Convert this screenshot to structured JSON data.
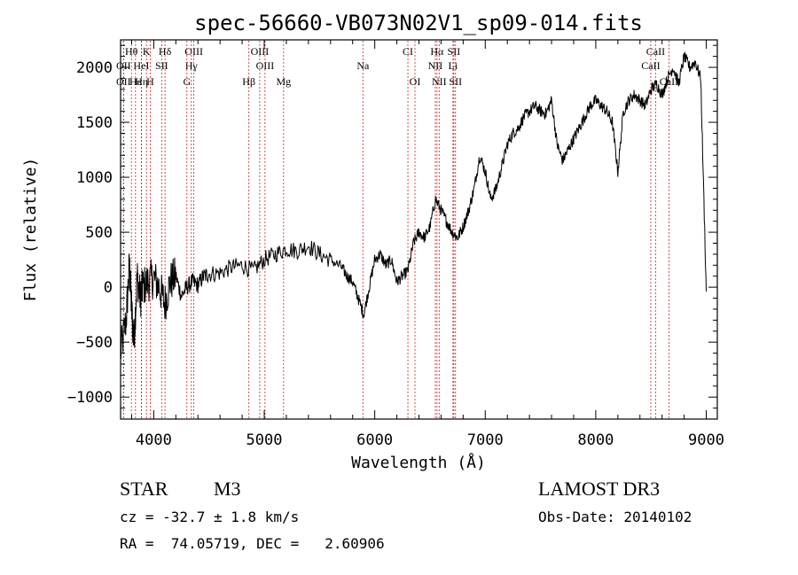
{
  "chart_data": {
    "type": "line",
    "title": "spec-56660-VB073N02V1_sp09-014.fits",
    "xlabel": "Wavelength (Å)",
    "ylabel": "Flux (relative)",
    "xlim": [
      3700,
      9100
    ],
    "ylim": [
      -1200,
      2250
    ],
    "xticks": [
      4000,
      5000,
      6000,
      7000,
      8000,
      9000
    ],
    "yticks": [
      -1000,
      -500,
      0,
      500,
      1000,
      1500,
      2000
    ],
    "series": [
      {
        "name": "flux",
        "x": [
          3700,
          3750,
          3780,
          3800,
          3820,
          3850,
          3880,
          3900,
          3950,
          4000,
          4050,
          4100,
          4150,
          4200,
          4250,
          4300,
          4350,
          4400,
          4450,
          4500,
          4600,
          4700,
          4800,
          4900,
          5000,
          5100,
          5200,
          5300,
          5400,
          5500,
          5600,
          5700,
          5750,
          5800,
          5850,
          5900,
          5950,
          6000,
          6050,
          6100,
          6150,
          6200,
          6250,
          6300,
          6350,
          6400,
          6450,
          6500,
          6550,
          6600,
          6650,
          6700,
          6750,
          6800,
          6850,
          6900,
          6950,
          7000,
          7050,
          7100,
          7150,
          7200,
          7250,
          7300,
          7350,
          7400,
          7450,
          7500,
          7550,
          7600,
          7650,
          7700,
          7750,
          7800,
          7850,
          7900,
          7950,
          8000,
          8050,
          8100,
          8150,
          8200,
          8250,
          8300,
          8350,
          8400,
          8450,
          8500,
          8550,
          8600,
          8650,
          8700,
          8750,
          8800,
          8850,
          8900,
          8950,
          9000
        ],
        "y": [
          -600,
          -300,
          200,
          -200,
          -500,
          100,
          -100,
          0,
          50,
          80,
          0,
          -150,
          50,
          100,
          -80,
          0,
          50,
          20,
          100,
          120,
          130,
          180,
          200,
          150,
          250,
          300,
          350,
          330,
          380,
          300,
          250,
          180,
          100,
          50,
          -100,
          -250,
          0,
          250,
          300,
          200,
          250,
          50,
          100,
          150,
          400,
          500,
          450,
          550,
          800,
          700,
          600,
          500,
          450,
          550,
          700,
          900,
          1200,
          1050,
          800,
          900,
          1100,
          1300,
          1400,
          1450,
          1550,
          1600,
          1650,
          1600,
          1580,
          1700,
          1300,
          1150,
          1250,
          1350,
          1450,
          1550,
          1650,
          1700,
          1650,
          1600,
          1500,
          1050,
          1600,
          1700,
          1750,
          1700,
          1650,
          1800,
          1850,
          1750,
          1900,
          2000,
          1850,
          2100,
          2000,
          2050,
          1900,
          -40
        ]
      }
    ],
    "emission_lines": [
      {
        "label": "Hθ",
        "x": 3798,
        "row": 1
      },
      {
        "label": "K",
        "x": 3934,
        "row": 1
      },
      {
        "label": "Hδ",
        "x": 4102,
        "row": 1
      },
      {
        "label": "OIII",
        "x": 4363,
        "row": 1
      },
      {
        "label": "OIII",
        "x": 4959,
        "row": 1
      },
      {
        "label": "CI",
        "x": 6300,
        "row": 1
      },
      {
        "label": "Hα",
        "x": 6563,
        "row": 1
      },
      {
        "label": "SII",
        "x": 6716,
        "row": 1
      },
      {
        "label": "CaII",
        "x": 8542,
        "row": 1
      },
      {
        "label": "OII",
        "x": 3727,
        "row": 2
      },
      {
        "label": "HeI",
        "x": 3888,
        "row": 2
      },
      {
        "label": "SII",
        "x": 4072,
        "row": 2
      },
      {
        "label": "Hγ",
        "x": 4340,
        "row": 2
      },
      {
        "label": "OIII",
        "x": 5007,
        "row": 2
      },
      {
        "label": "Na",
        "x": 5893,
        "row": 2
      },
      {
        "label": "NII",
        "x": 6548,
        "row": 2
      },
      {
        "label": "Li",
        "x": 6708,
        "row": 2
      },
      {
        "label": "CaII",
        "x": 8498,
        "row": 2
      },
      {
        "label": "OII",
        "x": 3727,
        "row": 3
      },
      {
        "label": "Hε",
        "x": 3835,
        "row": 3
      },
      {
        "label": "Hη",
        "x": 3889,
        "row": 3
      },
      {
        "label": "H",
        "x": 3968,
        "row": 3
      },
      {
        "label": "G",
        "x": 4300,
        "row": 3
      },
      {
        "label": "Hβ",
        "x": 4861,
        "row": 3
      },
      {
        "label": "Mg",
        "x": 5175,
        "row": 3
      },
      {
        "label": "OI",
        "x": 6364,
        "row": 3
      },
      {
        "label": "NII",
        "x": 6583,
        "row": 3
      },
      {
        "label": "SII",
        "x": 6731,
        "row": 3
      },
      {
        "label": "CaII",
        "x": 8662,
        "row": 3
      }
    ]
  },
  "info": {
    "object_type": "STAR",
    "subclass": "M3",
    "survey": "LAMOST DR3",
    "cz": "cz = -32.7 ± 1.8 km/s",
    "obs_date": "Obs-Date: 20140102",
    "coords": "RA =  74.05719, DEC =   2.60906"
  }
}
